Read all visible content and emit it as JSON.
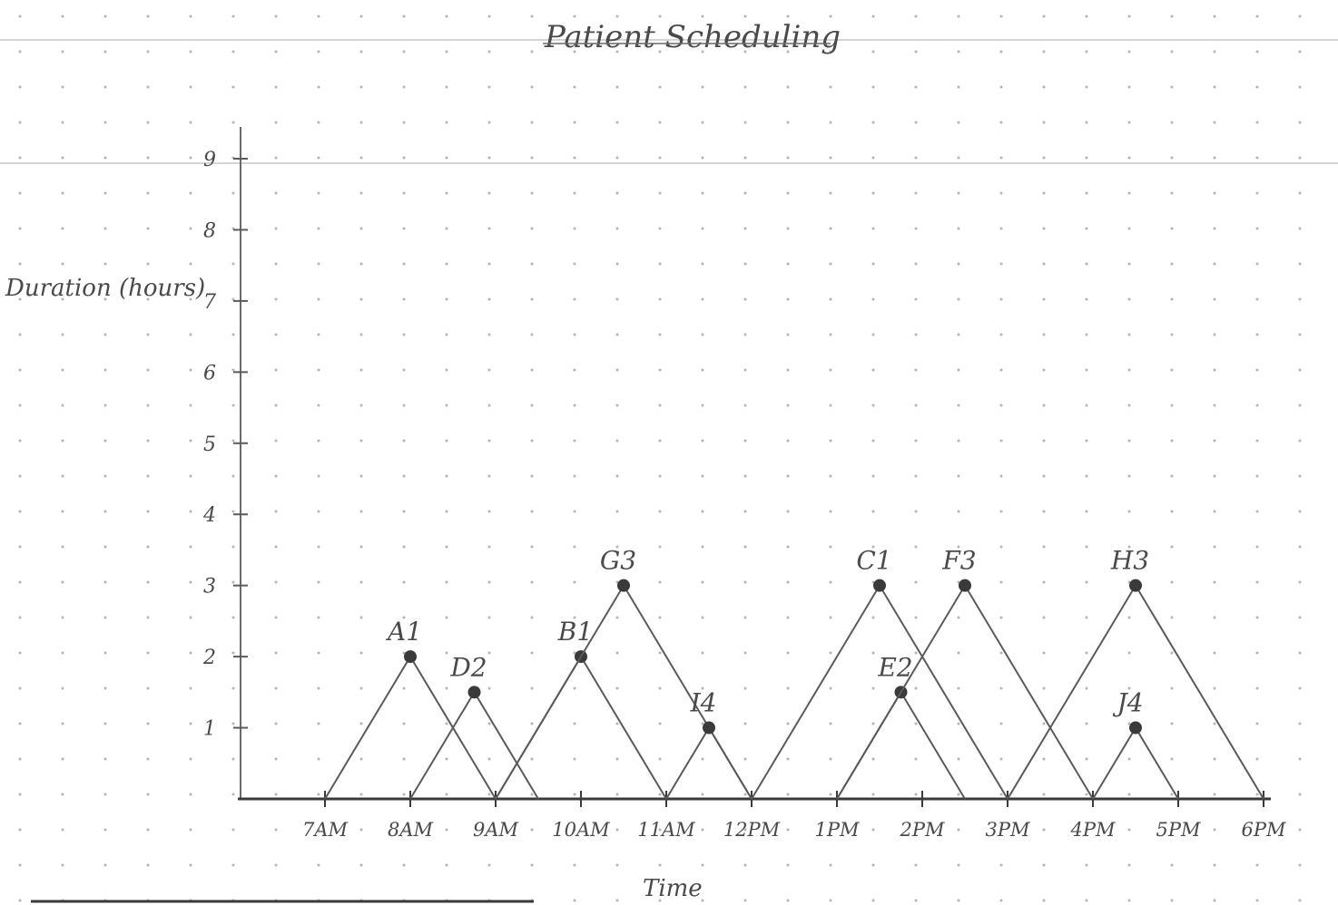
{
  "chart_data": {
    "type": "line",
    "title": "Patient Scheduling",
    "xlabel": "Time",
    "ylabel": "Duration (hours)",
    "x_ticks": [
      "7AM",
      "8AM",
      "9AM",
      "10AM",
      "11AM",
      "12PM",
      "1PM",
      "2PM",
      "3PM",
      "4PM",
      "5PM",
      "6PM"
    ],
    "y_ticks": [
      "1",
      "2",
      "3",
      "4",
      "5",
      "6",
      "7",
      "8",
      "9"
    ],
    "xlim": [
      7,
      18
    ],
    "ylim": [
      0,
      9
    ],
    "grid": "dotted",
    "series": [
      {
        "name": "A1",
        "points": [
          [
            7,
            0
          ],
          [
            8,
            2
          ],
          [
            9,
            0
          ]
        ]
      },
      {
        "name": "D2",
        "points": [
          [
            8,
            0
          ],
          [
            8.75,
            1.5
          ],
          [
            9.5,
            0
          ]
        ]
      },
      {
        "name": "B1",
        "points": [
          [
            9,
            0
          ],
          [
            10,
            2
          ],
          [
            11,
            0
          ]
        ]
      },
      {
        "name": "G3",
        "points": [
          [
            9,
            0
          ],
          [
            10.5,
            3
          ],
          [
            12,
            0
          ]
        ]
      },
      {
        "name": "I4",
        "points": [
          [
            11,
            0
          ],
          [
            11.5,
            1
          ],
          [
            12,
            0
          ]
        ]
      },
      {
        "name": "C1",
        "points": [
          [
            12,
            0
          ],
          [
            13.5,
            3
          ],
          [
            15,
            0
          ]
        ]
      },
      {
        "name": "E2",
        "points": [
          [
            13,
            0
          ],
          [
            13.75,
            1.5
          ],
          [
            14.5,
            0
          ]
        ]
      },
      {
        "name": "F3",
        "points": [
          [
            13,
            0
          ],
          [
            14.5,
            3
          ],
          [
            16,
            0
          ]
        ]
      },
      {
        "name": "H3",
        "points": [
          [
            15,
            0
          ],
          [
            16.5,
            3
          ],
          [
            18,
            0
          ]
        ]
      },
      {
        "name": "J4",
        "points": [
          [
            16,
            0
          ],
          [
            16.5,
            1
          ],
          [
            17,
            0
          ]
        ]
      }
    ]
  }
}
